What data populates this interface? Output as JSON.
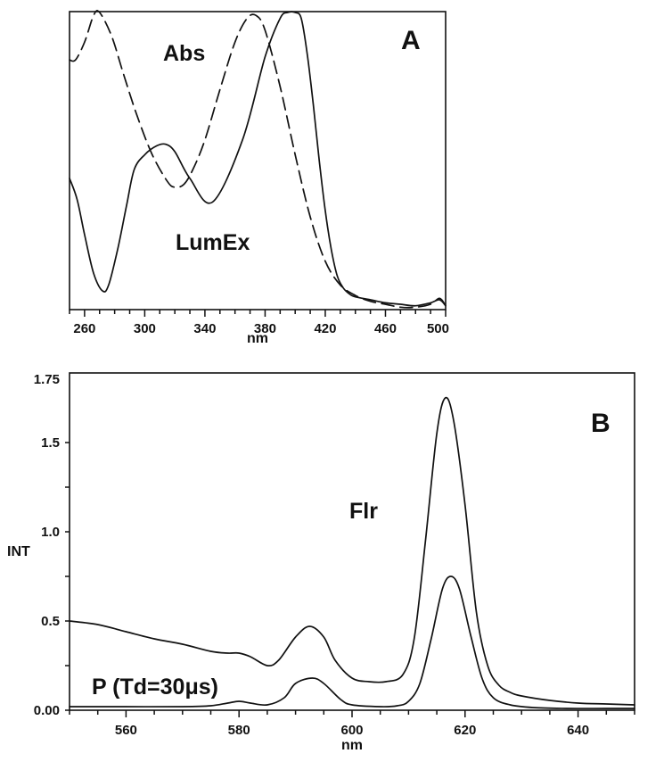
{
  "chart_data": [
    {
      "type": "line",
      "panel_label": "A",
      "xlabel": "nm",
      "ylabel": "",
      "xlim": [
        250,
        500
      ],
      "ylim": [
        0,
        1
      ],
      "y_ticks_labeled": false,
      "x_ticks": [
        260,
        300,
        340,
        380,
        420,
        460,
        500
      ],
      "x_tick_labels": [
        "260",
        "300",
        "340",
        "380",
        "420",
        "460",
        "500"
      ],
      "annotations": [
        "Abs",
        "LumEx"
      ],
      "series": [
        {
          "style": "dashed",
          "x": [
            250,
            254,
            260,
            266,
            270,
            278,
            286,
            295,
            305,
            315,
            320,
            326,
            332,
            340,
            350,
            360,
            368,
            374,
            380,
            390,
            400,
            410,
            420,
            430,
            440,
            450,
            460,
            470,
            480,
            490,
            496,
            500
          ],
          "y": [
            0.84,
            0.84,
            0.9,
            0.99,
            1.0,
            0.92,
            0.79,
            0.65,
            0.52,
            0.43,
            0.41,
            0.42,
            0.47,
            0.57,
            0.74,
            0.9,
            0.98,
            0.99,
            0.94,
            0.75,
            0.52,
            0.31,
            0.16,
            0.08,
            0.045,
            0.025,
            0.015,
            0.005,
            0.005,
            0.015,
            0.035,
            0.01
          ]
        },
        {
          "style": "dash-dot",
          "x": [
            250,
            255,
            260,
            266,
            272,
            276,
            282,
            288,
            293,
            300,
            308,
            314,
            320,
            330,
            345,
            365,
            380,
            390,
            395,
            400,
            404,
            408,
            412,
            416,
            420,
            424,
            428,
            432,
            436,
            440,
            450,
            460,
            470,
            480,
            490,
            496,
            500
          ],
          "y": [
            0.44,
            0.37,
            0.25,
            0.12,
            0.06,
            0.08,
            0.2,
            0.35,
            0.47,
            0.52,
            0.55,
            0.555,
            0.53,
            0.44,
            0.36,
            0.57,
            0.85,
            0.98,
            1.0,
            1.0,
            0.98,
            0.86,
            0.69,
            0.5,
            0.33,
            0.2,
            0.11,
            0.07,
            0.05,
            0.04,
            0.03,
            0.02,
            0.015,
            0.01,
            0.02,
            0.03,
            0.01
          ]
        }
      ]
    },
    {
      "type": "line",
      "panel_label": "B",
      "xlabel": "nm",
      "ylabel": "INT",
      "xlim": [
        550,
        650
      ],
      "ylim": [
        0,
        1.75
      ],
      "x_ticks": [
        560,
        580,
        600,
        620,
        640
      ],
      "x_tick_labels": [
        "560",
        "580",
        "600",
        "620",
        "640"
      ],
      "y_ticks": [
        0,
        0.5,
        1.0,
        1.5,
        1.75
      ],
      "y_tick_labels": [
        "0.00",
        "0.5",
        "1.0",
        "1.5",
        "1.75"
      ],
      "annotations": [
        "Flr",
        "P (Td=30μs)"
      ],
      "series": [
        {
          "style": "solid",
          "x": [
            550,
            555,
            560,
            565,
            570,
            575,
            578,
            580,
            582,
            585,
            587,
            590,
            592.5,
            595,
            597,
            600,
            603,
            606,
            609,
            611,
            613,
            615,
            616.5,
            618,
            620,
            622,
            624,
            626,
            628,
            630,
            635,
            640,
            645,
            650
          ],
          "y": [
            0.5,
            0.48,
            0.44,
            0.4,
            0.37,
            0.33,
            0.32,
            0.32,
            0.3,
            0.25,
            0.28,
            0.41,
            0.47,
            0.41,
            0.28,
            0.18,
            0.16,
            0.16,
            0.2,
            0.4,
            0.95,
            1.55,
            1.75,
            1.62,
            1.15,
            0.55,
            0.25,
            0.14,
            0.1,
            0.08,
            0.055,
            0.04,
            0.035,
            0.03
          ]
        },
        {
          "style": "dash-dot",
          "x": [
            550,
            560,
            570,
            575,
            578,
            580,
            582,
            585,
            588,
            590,
            593,
            595,
            598,
            600,
            605,
            608,
            610,
            612,
            614,
            616,
            617.5,
            619,
            621,
            623,
            625,
            628,
            632,
            638,
            645,
            650
          ],
          "y": [
            0.02,
            0.02,
            0.02,
            0.025,
            0.04,
            0.05,
            0.04,
            0.03,
            0.07,
            0.15,
            0.18,
            0.15,
            0.06,
            0.03,
            0.02,
            0.025,
            0.05,
            0.15,
            0.4,
            0.68,
            0.75,
            0.68,
            0.42,
            0.18,
            0.07,
            0.03,
            0.015,
            0.01,
            0.01,
            0.01
          ]
        }
      ]
    }
  ]
}
